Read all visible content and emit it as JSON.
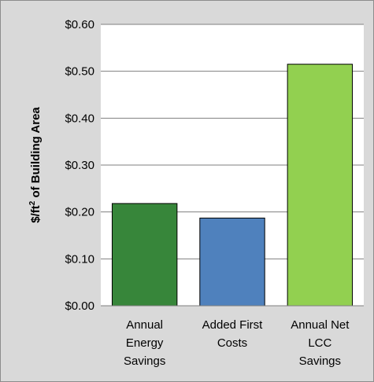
{
  "chart_data": {
    "type": "bar",
    "categories": [
      [
        "Annual",
        "Energy",
        "Savings"
      ],
      [
        "Added First",
        "Costs"
      ],
      [
        "Annual Net",
        "LCC",
        "Savings"
      ]
    ],
    "values": [
      0.218,
      0.187,
      0.515
    ],
    "bar_colors": [
      "#37863a",
      "#4f81bd",
      "#92d050"
    ],
    "ylabel_parts": [
      "$/ft",
      "2",
      " of Building  Area"
    ],
    "ylim": [
      0,
      0.6
    ],
    "yticks": [
      0,
      0.1,
      0.2,
      0.3,
      0.4,
      0.5,
      0.6
    ],
    "ytick_labels": [
      "$0.00",
      "$0.10",
      "$0.20",
      "$0.30",
      "$0.40",
      "$0.50",
      "$0.60"
    ],
    "grid": true,
    "legend": "none",
    "background_color": "#d9d9d9",
    "plot_area_color": "#ffffff"
  }
}
